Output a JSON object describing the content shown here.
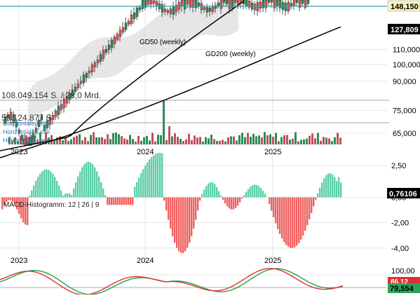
{
  "colors": {
    "background": "#ffffff",
    "grid": "#e6e6e6",
    "price_candle_up": "#2e8b57",
    "price_candle_down": "#d9545a",
    "ma_band": "#dcdcdc",
    "ma_line": "#000000",
    "horizontal_line": "#3aa0a8",
    "volume_up": "#2e8b57",
    "volume_down": "#c0505a",
    "macd_pos": "#5ccfa9",
    "macd_neg": "#f06060",
    "stoch_k": "#1aa34a",
    "stoch_d": "#e03030",
    "label_dark": "#000000",
    "label_green": "#2aa35a",
    "label_red": "#e03030"
  },
  "chart_data": [
    {
      "type": "line",
      "panel": "price",
      "scale": "log",
      "ylim": [
        60000,
        150000
      ],
      "y_ticks": [
        {
          "value": 65000,
          "label": "65,000"
        },
        {
          "value": 75000,
          "label": "75,000"
        },
        {
          "value": 90000,
          "label": "90,000"
        },
        {
          "value": 100000,
          "label": "100,000"
        },
        {
          "value": 110000,
          "label": "110,000"
        }
      ],
      "x_labels": [
        "2023",
        "2024",
        "2025"
      ],
      "price_badges": [
        {
          "value": 148150,
          "label": "148,150",
          "style": "light"
        },
        {
          "value": 127809,
          "label": "127,809",
          "style": "dark"
        }
      ],
      "series": [
        {
          "name": "GD50 (weekly)",
          "label": "GD50 (weekly)"
        },
        {
          "name": "GD200 (weekly)",
          "label": "GD200 (weekly)"
        }
      ],
      "annotations": [
        "108.049.154 S. / 28,0 Mrd.",
        "59.124.877 S.",
        "Horizontale Linie",
        "Horizontale Linie",
        "Horizontale Linie"
      ]
    },
    {
      "type": "bar",
      "panel": "macd",
      "title": "MACD-Histogramm: 12 | 26 | 9",
      "ylim": [
        -5,
        3.5
      ],
      "y_ticks": [
        {
          "value": 2.5,
          "label": "2,50"
        },
        {
          "value": 0,
          "label": "0,00"
        },
        {
          "value": -2,
          "label": "-2,00"
        },
        {
          "value": -4,
          "label": "-4,00"
        }
      ],
      "x_labels": [
        "2023",
        "2024",
        "2025"
      ],
      "current": {
        "value": 0.76106,
        "label": "0,76106"
      }
    },
    {
      "type": "line",
      "panel": "stochastic",
      "ylim": [
        0,
        100
      ],
      "y_ticks": [
        {
          "value": 100,
          "label": "100,00"
        }
      ],
      "current": [
        {
          "value": 86.12,
          "label": "86,12",
          "style": "red"
        },
        {
          "value": 79.554,
          "label": "79,554",
          "style": "green"
        }
      ]
    }
  ]
}
